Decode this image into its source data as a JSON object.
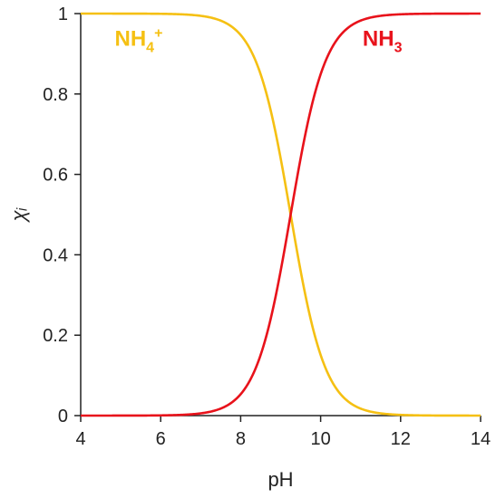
{
  "chart_data": {
    "type": "line",
    "xlabel": "pH",
    "ylabel": "χᵢ",
    "xlim": [
      4,
      14
    ],
    "ylim": [
      0,
      1
    ],
    "x_ticks": [
      4,
      6,
      8,
      10,
      12,
      14
    ],
    "y_ticks": [
      {
        "value": 0,
        "label": "0"
      },
      {
        "value": 0.2,
        "label": "0.2"
      },
      {
        "value": 0.4,
        "label": "0.4"
      },
      {
        "value": 0.6,
        "label": "0.6"
      },
      {
        "value": 0.8,
        "label": "0.8"
      },
      {
        "value": 1,
        "label": "1"
      }
    ],
    "grid": false,
    "legend": "inline",
    "pKa": 9.25,
    "series": [
      {
        "name": "NH4+",
        "label_main": "NH",
        "label_sub": "4",
        "label_sup": "+",
        "color": "#F5C013",
        "trend": "decreasing",
        "x": [
          4,
          5,
          6,
          6.5,
          7,
          7.5,
          8,
          8.5,
          8.75,
          9,
          9.25,
          9.5,
          9.75,
          10,
          10.5,
          11,
          11.5,
          12,
          13,
          14
        ],
        "y": [
          1.0,
          1.0,
          0.9994,
          0.9982,
          0.9944,
          0.9826,
          0.9468,
          0.8491,
          0.7597,
          0.6401,
          0.5,
          0.3599,
          0.2403,
          0.1509,
          0.0532,
          0.0174,
          0.0056,
          0.0018,
          0.0002,
          0.0
        ]
      },
      {
        "name": "NH3",
        "label_main": "NH",
        "label_sub": "3",
        "label_sup": "",
        "color": "#E8121B",
        "trend": "increasing",
        "x": [
          4,
          5,
          6,
          6.5,
          7,
          7.5,
          8,
          8.5,
          8.75,
          9,
          9.25,
          9.5,
          9.75,
          10,
          10.5,
          11,
          11.5,
          12,
          13,
          14
        ],
        "y": [
          0.0,
          0.0,
          0.0006,
          0.0018,
          0.0056,
          0.0174,
          0.0532,
          0.1509,
          0.2403,
          0.3599,
          0.5,
          0.6401,
          0.7597,
          0.8491,
          0.9468,
          0.9826,
          0.9944,
          0.9982,
          0.9998,
          1.0
        ]
      }
    ]
  }
}
